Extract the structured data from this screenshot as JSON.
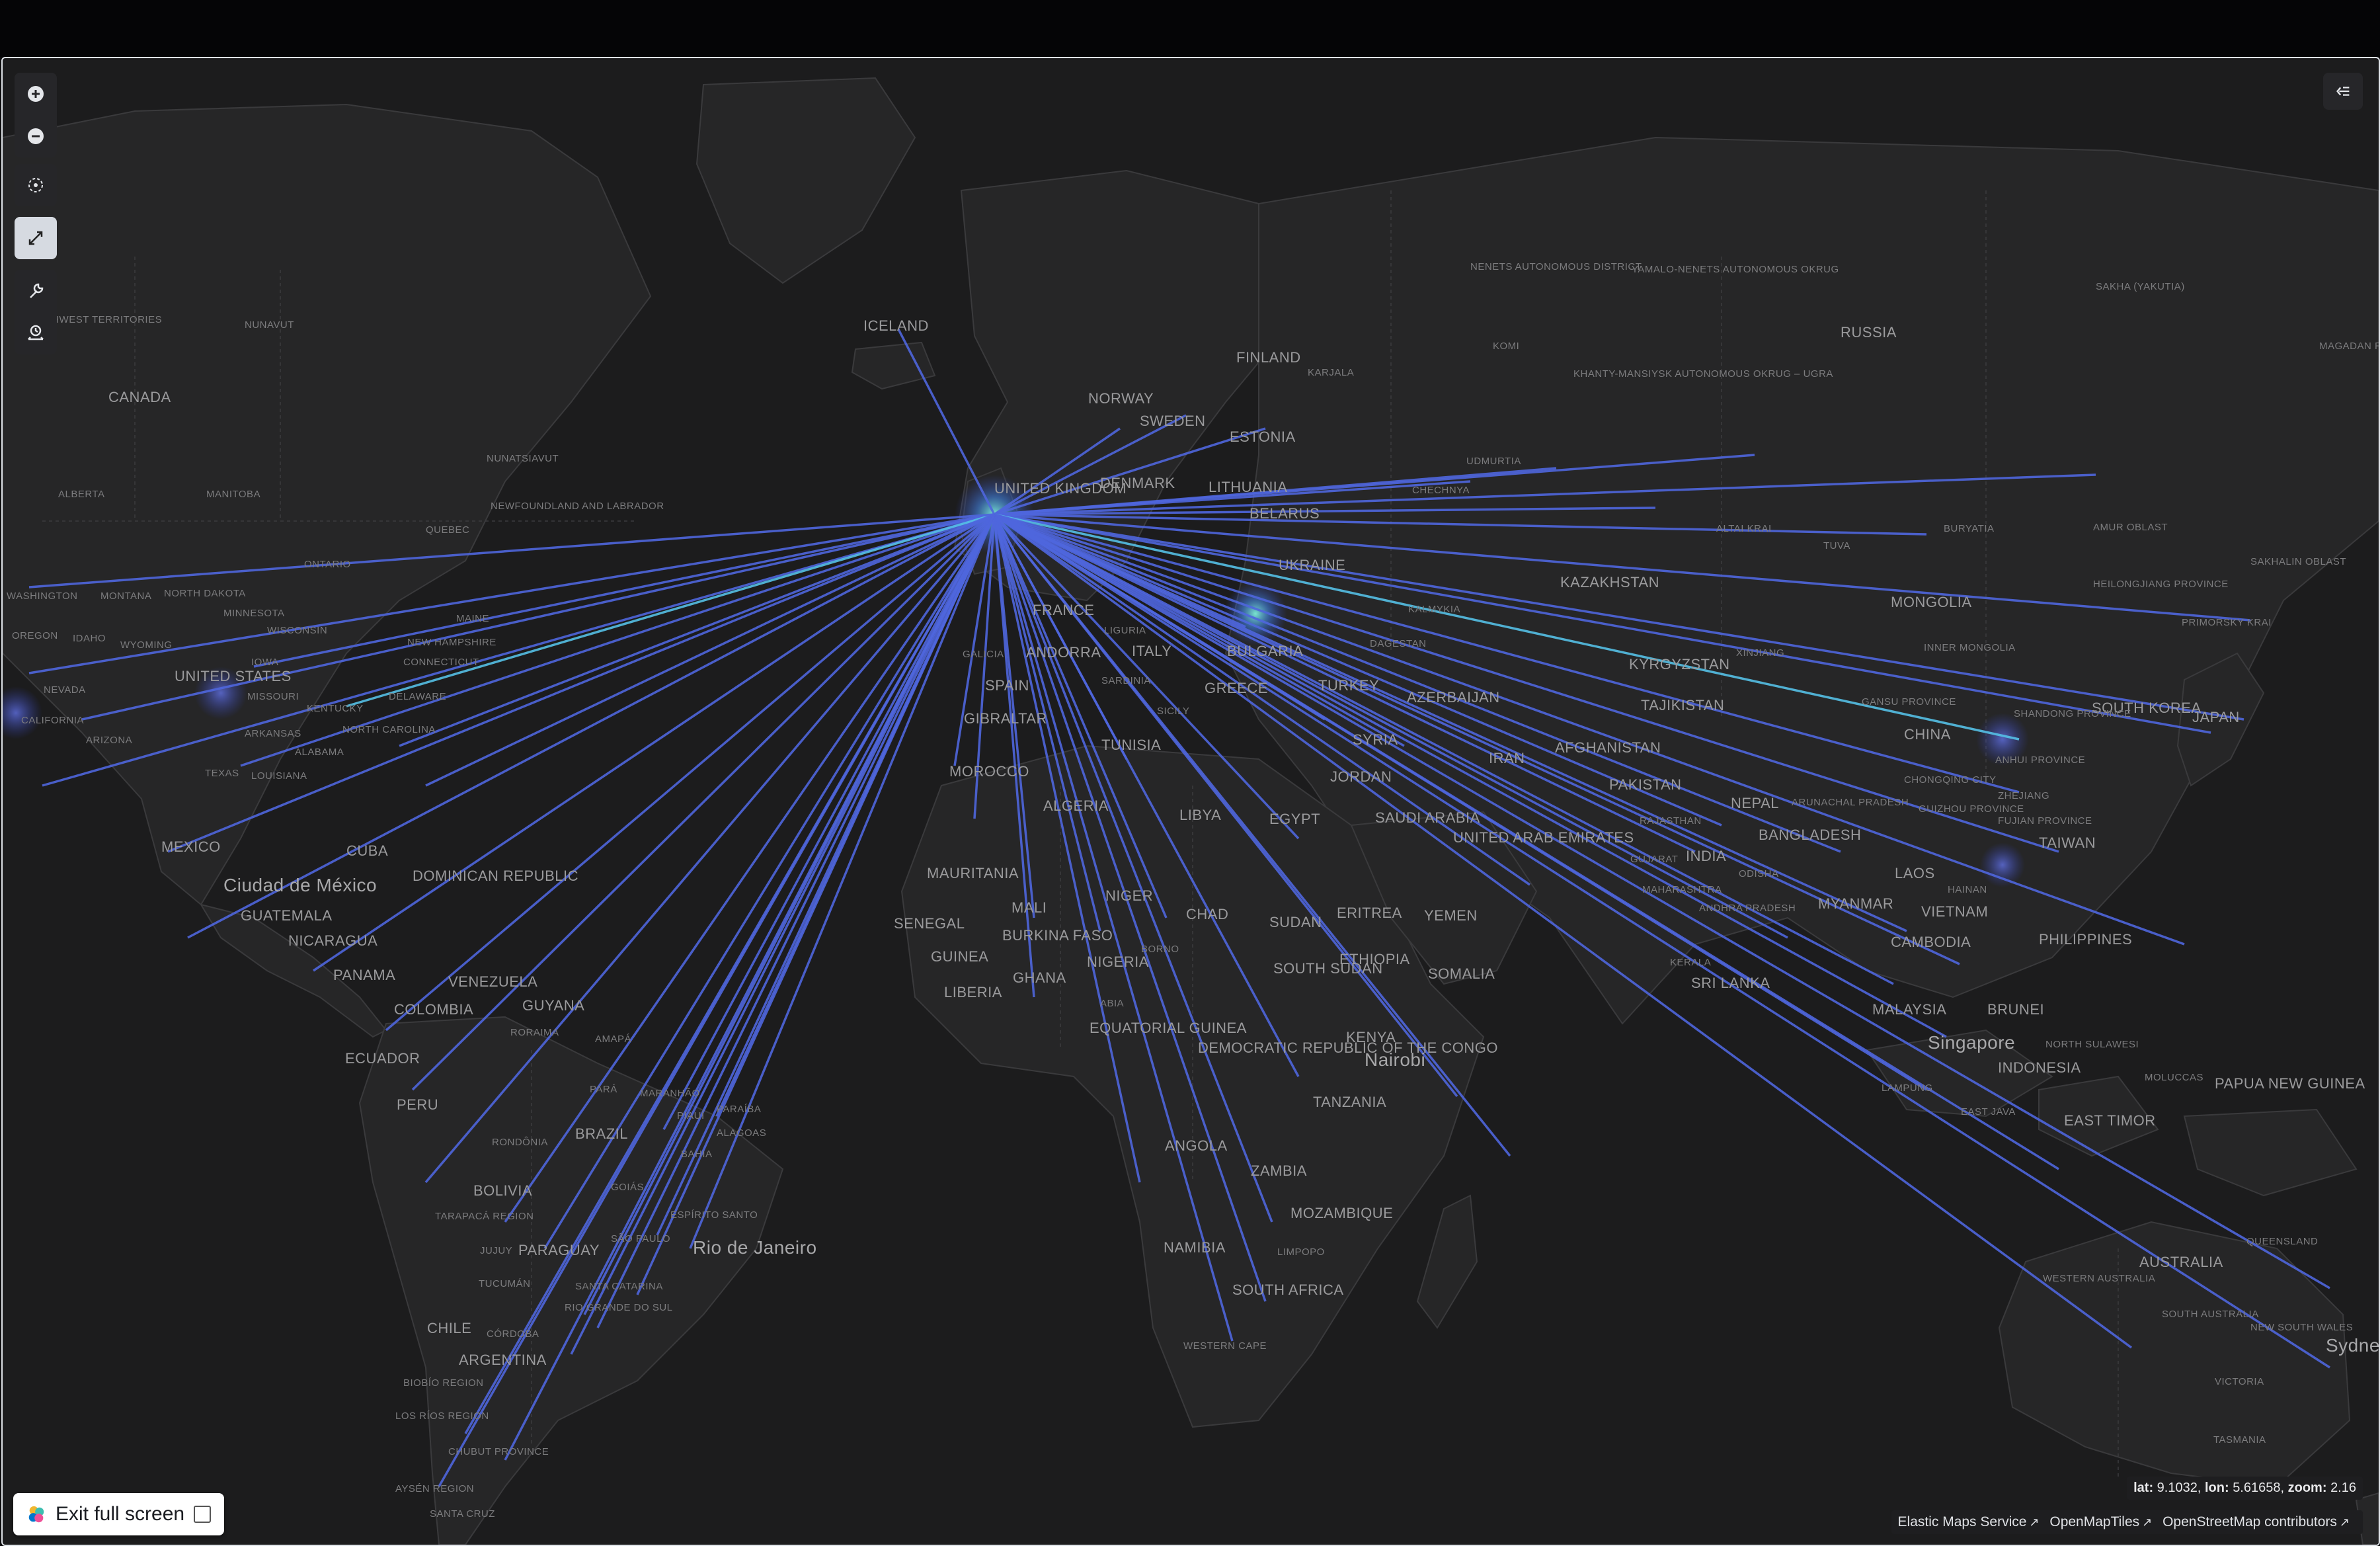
{
  "map": {
    "labels": {
      "countries": [
        "ICELAND",
        "CANADA",
        "NORWAY",
        "SWEDEN",
        "FINLAND",
        "ESTONIA",
        "DENMARK",
        "LITHUANIA",
        "BELARUS",
        "UKRAINE",
        "RUSSIA",
        "KAZAKHSTAN",
        "MONGOLIA",
        "CHINA",
        "JAPAN",
        "SOUTH KOREA",
        "UNITED STATES",
        "MEXICO",
        "CUBA",
        "DOMINICAN REPUBLIC",
        "GUATEMALA",
        "NICARAGUA",
        "PANAMA",
        "COLOMBIA",
        "VENEZUELA",
        "GUYANA",
        "ECUADOR",
        "PERU",
        "BRAZIL",
        "BOLIVIA",
        "PARAGUAY",
        "CHILE",
        "ARGENTINA",
        "FRANCE",
        "SPAIN",
        "ITALY",
        "GREECE",
        "BULGARIA",
        "TURKEY",
        "ANDORRA",
        "GIBRALTAR",
        "MOROCCO",
        "ALGERIA",
        "TUNISIA",
        "LIBYA",
        "EGYPT",
        "MAURITANIA",
        "SENEGAL",
        "MALI",
        "BURKINA FASO",
        "GUINEA",
        "LIBERIA",
        "GHANA",
        "NIGER",
        "NIGERIA",
        "CHAD",
        "SUDAN",
        "SOUTH SUDAN",
        "ETHIOPIA",
        "ERITREA",
        "SOMALIA",
        "KENYA",
        "TANZANIA",
        "EQUATORIAL GUINEA",
        "DEMOCRATIC REPUBLIC OF THE CONGO",
        "ANGOLA",
        "ZAMBIA",
        "NAMIBIA",
        "MOZAMBIQUE",
        "SOUTH AFRICA",
        "SYRIA",
        "JORDAN",
        "SAUDI ARABIA",
        "YEMEN",
        "IRAN",
        "UNITED ARAB EMIRATES",
        "AZERBAIJAN",
        "KYRGYZSTAN",
        "TAJIKISTAN",
        "AFGHANISTAN",
        "PAKISTAN",
        "INDIA",
        "NEPAL",
        "BANGLADESH",
        "MYANMAR",
        "LAOS",
        "VIETNAM",
        "CAMBODIA",
        "PHILIPPINES",
        "TAIWAN",
        "MALAYSIA",
        "BRUNEI",
        "INDONESIA",
        "SRI LANKA",
        "PAPUA NEW GUINEA",
        "EAST TIMOR",
        "AUSTRALIA",
        "UNITED KINGDOM"
      ],
      "cities": [
        "Ciudad de México",
        "Rio de Janeiro",
        "Nairobi",
        "Singapore",
        "Sydney"
      ],
      "regions": [
        "NUNAVUT",
        "NORTHWEST TERRITORIES",
        "ALBERTA",
        "MANITOBA",
        "NUNATSIAVUT",
        "NEWFOUNDLAND AND LABRADOR",
        "QUEBEC",
        "ONTARIO",
        "WASHINGTON",
        "MONTANA",
        "NORTH DAKOTA",
        "MINNESOTA",
        "WISCONSIN",
        "OREGON",
        "IDAHO",
        "WYOMING",
        "IOWA",
        "NEVADA",
        "CALIFORNIA",
        "ARIZONA",
        "TEXAS",
        "MISSOURI",
        "KENTUCKY",
        "ARKANSAS",
        "ALABAMA",
        "LOUISIANA",
        "NORTH CAROLINA",
        "MAINE",
        "NEW HAMPSHIRE",
        "CONNECTICUT",
        "DELAWARE",
        "NENETS AUTONOMOUS DISTRICT",
        "YAMALO-NENETS AUTONOMOUS OKRUG",
        "SAKHA (YAKUTIA)",
        "KOMI",
        "KARJALA",
        "KHANTY-MANSIYSK AUTONOMOUS OKRUG – UGRA",
        "MAGADAN REGION",
        "UDMURTIA",
        "BURYATIA",
        "AMUR OBLAST",
        "TUVA",
        "ALTAI KRAI",
        "SAKHALIN OBLAST",
        "HEILONGJIANG PROVINCE",
        "PRIMORSKY KRAI",
        "INNER MONGOLIA",
        "XINJIANG",
        "GANSU PROVINCE",
        "SHANDONG PROVINCE",
        "ANHUI PROVINCE",
        "CHONGQING CITY",
        "ZHEJIANG",
        "GUIZHOU PROVINCE",
        "FUJIAN PROVINCE",
        "ARUNACHAL PRADESH",
        "RAJASTHAN",
        "GUJARAT",
        "MAHARASHTRA",
        "ANDHRA PRADESH",
        "ODISHA",
        "KERALA",
        "HAINAN",
        "NORTH SULAWESI",
        "MOLUCCAS",
        "LAMPUNG",
        "EAST JAVA",
        "WESTERN AUSTRALIA",
        "SOUTH AUSTRALIA",
        "NEW SOUTH WALES",
        "QUEENSLAND",
        "VICTORIA",
        "TASMANIA",
        "RORAIMA",
        "AMAPÁ",
        "PARÁ",
        "MARANHÃO",
        "PIAUÍ",
        "PARAÍBA",
        "ALAGOAS",
        "BAHIA",
        "GOIÁS",
        "RONDÔNIA",
        "TARAPACÁ REGION",
        "ESPÍRITO SANTO",
        "SÃO PAULO",
        "SANTA CATARINA",
        "RIO GRANDE DO SUL",
        "JUJUY",
        "TUCUMÁN",
        "CÓRDOBA",
        "BIOBÍO REGION",
        "LOS RÍOS REGION",
        "CHUBUT PROVINCE",
        "AYSÉN REGION",
        "SANTA CRUZ",
        "BORNO",
        "ABIA",
        "LIMPOPO",
        "WESTERN CAPE",
        "GALICIA",
        "LIGURIA",
        "SARDINIA",
        "SICILY",
        "CHECHNYA",
        "KALMYKIA",
        "DAGESTAN"
      ]
    },
    "flows": {
      "origin": "UNITED KINGDOM",
      "line_color": "#4f66dd",
      "highlight_color": "#55c0e6",
      "hotspot_color": "#5fe0d0"
    }
  },
  "controls": {
    "zoom_in": "zoom-in",
    "zoom_out": "zoom-out",
    "set_view": "crosshair",
    "fit": "expand",
    "tools": "wrench",
    "time": "timeslider"
  },
  "status": {
    "coords_lat_label": "lat:",
    "coords_lat": "9.1032,",
    "coords_lon_label": "lon:",
    "coords_lon": "5.61658,",
    "coords_zoom_label": "zoom:",
    "coords_zoom": "2.16"
  },
  "attribution": {
    "ems": "Elastic Maps Service",
    "omt": "OpenMapTiles",
    "osm": "OpenStreetMap contributors"
  },
  "exit": {
    "label": "Exit full screen"
  }
}
